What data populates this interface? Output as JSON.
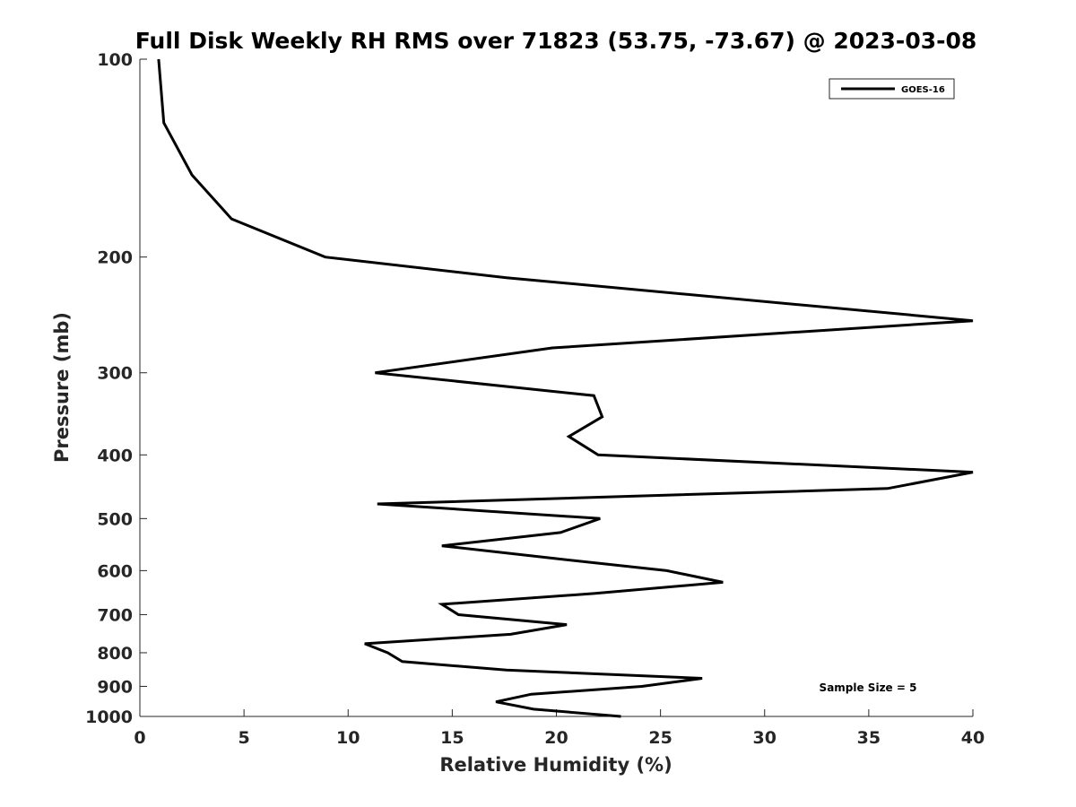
{
  "chart_data": {
    "type": "line",
    "title": "Full Disk Weekly RH RMS over 71823 (53.75, -73.67) @ 2023-03-08",
    "xlabel": "Relative Humidity (%)",
    "ylabel": "Pressure (mb)",
    "xlim": [
      0,
      40
    ],
    "ylim": [
      100,
      1000
    ],
    "y_scale": "log",
    "y_reversed": true,
    "x_ticks": [
      "0",
      "5",
      "10",
      "15",
      "20",
      "25",
      "30",
      "35",
      "40"
    ],
    "y_ticks": [
      "100",
      "200",
      "300",
      "400",
      "500",
      "600",
      "700",
      "800",
      "900",
      "1000"
    ],
    "grid": false,
    "legend": {
      "location": "top-right"
    },
    "annotation": "Sample Size = 5",
    "series": [
      {
        "name": "GOES-16",
        "color": "#000000",
        "points": [
          {
            "x": 0.9,
            "y": 100
          },
          {
            "x": 1.15,
            "y": 125
          },
          {
            "x": 2.5,
            "y": 150
          },
          {
            "x": 4.4,
            "y": 175
          },
          {
            "x": 8.9,
            "y": 200
          },
          {
            "x": 17.6,
            "y": 215
          },
          {
            "x": 40.0,
            "y": 250
          },
          {
            "x": 40.0,
            "y": 250
          },
          {
            "x": 19.8,
            "y": 275
          },
          {
            "x": 11.3,
            "y": 300
          },
          {
            "x": 21.8,
            "y": 325
          },
          {
            "x": 22.2,
            "y": 350
          },
          {
            "x": 20.6,
            "y": 375
          },
          {
            "x": 22.0,
            "y": 400
          },
          {
            "x": 40.0,
            "y": 425
          },
          {
            "x": 35.9,
            "y": 450
          },
          {
            "x": 11.4,
            "y": 475
          },
          {
            "x": 22.1,
            "y": 500
          },
          {
            "x": 20.2,
            "y": 525
          },
          {
            "x": 14.5,
            "y": 550
          },
          {
            "x": 19.9,
            "y": 575
          },
          {
            "x": 25.3,
            "y": 600
          },
          {
            "x": 28.0,
            "y": 625
          },
          {
            "x": 21.8,
            "y": 650
          },
          {
            "x": 14.5,
            "y": 675
          },
          {
            "x": 15.3,
            "y": 700
          },
          {
            "x": 20.5,
            "y": 725
          },
          {
            "x": 17.8,
            "y": 750
          },
          {
            "x": 10.8,
            "y": 775
          },
          {
            "x": 11.9,
            "y": 800
          },
          {
            "x": 12.6,
            "y": 825
          },
          {
            "x": 17.6,
            "y": 850
          },
          {
            "x": 27.0,
            "y": 875
          },
          {
            "x": 24.1,
            "y": 900
          },
          {
            "x": 18.8,
            "y": 925
          },
          {
            "x": 17.1,
            "y": 950
          },
          {
            "x": 18.9,
            "y": 975
          },
          {
            "x": 23.1,
            "y": 1000
          }
        ]
      }
    ]
  }
}
